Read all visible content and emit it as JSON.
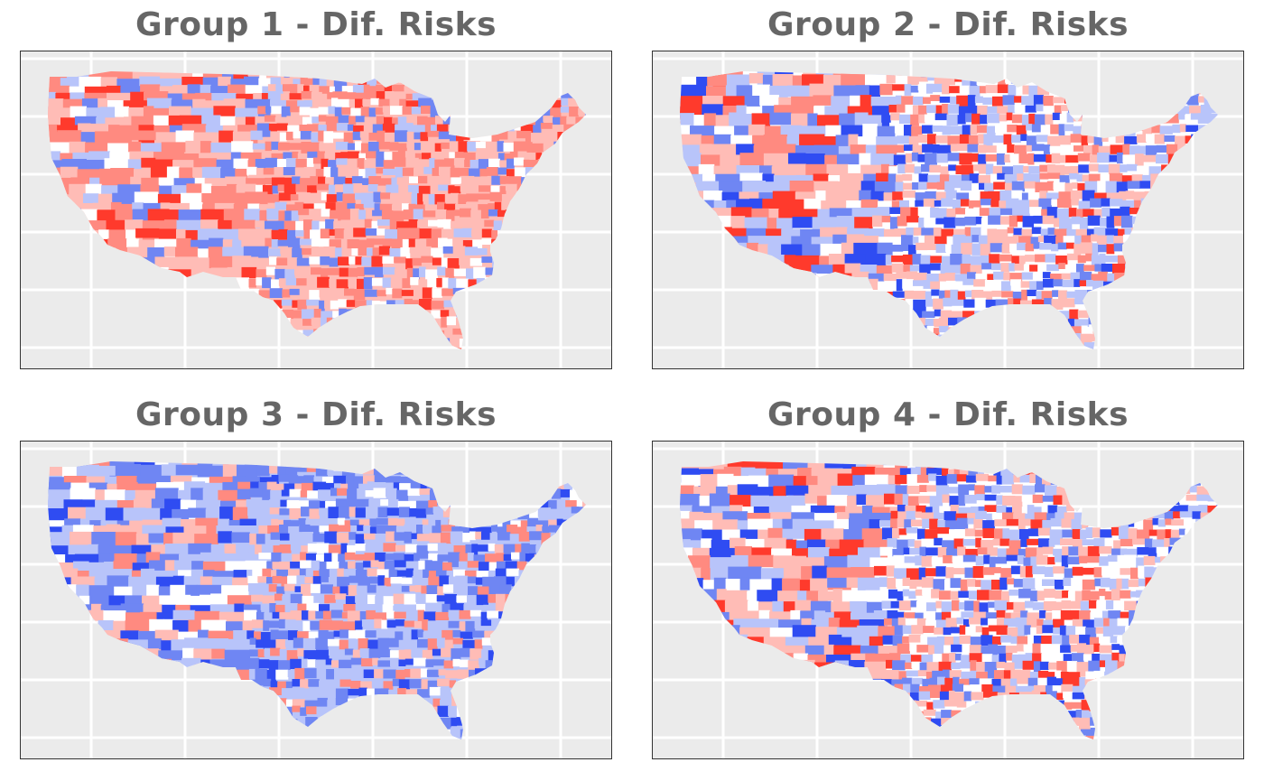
{
  "panels": [
    {
      "title": "Group 1 - Dif. Risks",
      "pattern": "mostly-red"
    },
    {
      "title": "Group 2 - Dif. Risks",
      "pattern": "mixed-red-blue"
    },
    {
      "title": "Group 3 - Dif. Risks",
      "pattern": "mostly-blue"
    },
    {
      "title": "Group 4 - Dif. Risks",
      "pattern": "mixed-red-blue"
    }
  ],
  "palette": {
    "background": "#ebebeb",
    "grid": "#ffffff",
    "title": "#666666",
    "frame": "#333333",
    "blue_dark": "#2f4cf2",
    "blue_mid": "#6f86f3",
    "blue_light": "#b8c4fa",
    "neutral": "#ffffff",
    "red_light": "#ffbcb6",
    "red_mid": "#ff8a80",
    "red_dark": "#ff3a2c"
  }
}
